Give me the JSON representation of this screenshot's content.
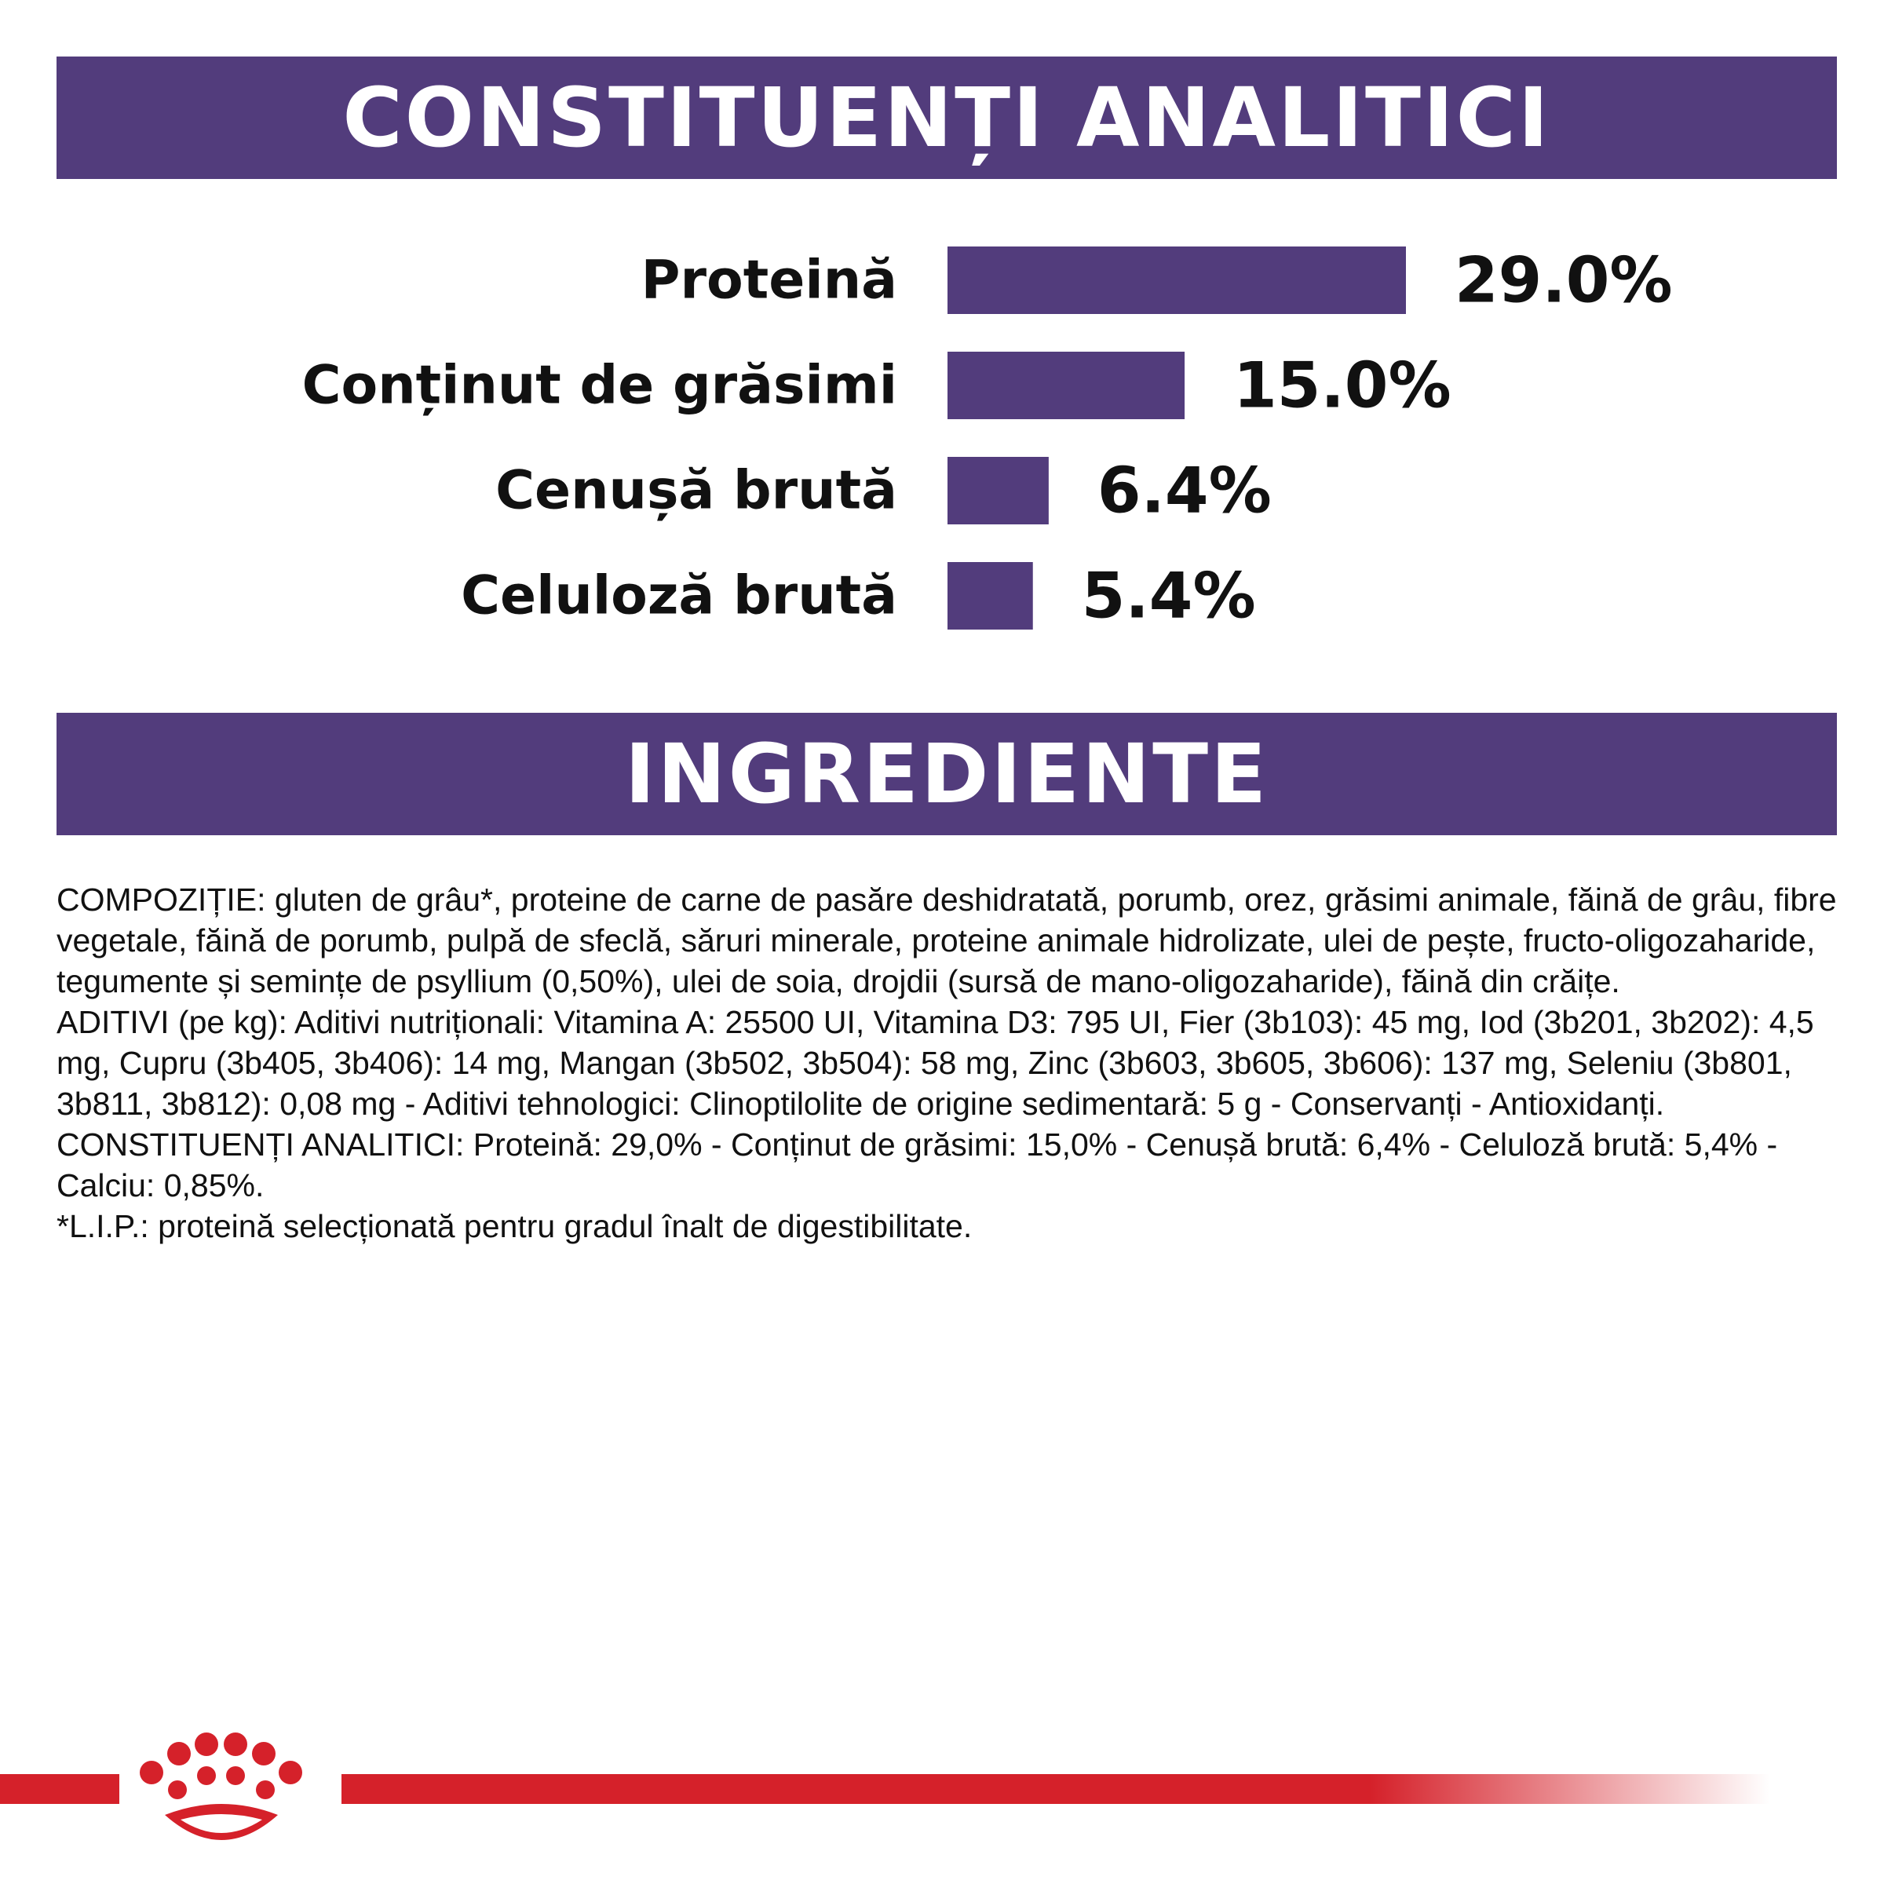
{
  "theme": {
    "purple": "#523c7c",
    "red": "#d5212a",
    "text": "#111111",
    "white": "#ffffff"
  },
  "sections": {
    "analytic_title": "CONSTITUENȚI ANALITICI",
    "ingredients_title": "INGREDIENTE"
  },
  "chart_data": {
    "type": "bar",
    "orientation": "horizontal",
    "title": "CONSTITUENȚI ANALITICI",
    "categories": [
      "Proteină",
      "Conținut de grăsimi",
      "Cenușă brută",
      "Celuloză brută"
    ],
    "values": [
      29.0,
      15.0,
      6.4,
      5.4
    ],
    "value_labels": [
      "29.0%",
      "15.0%",
      "6.4%",
      "5.4%"
    ],
    "unit": "%",
    "xlim": [
      0,
      29.0
    ],
    "grid": false,
    "legend": "none"
  },
  "ingredients": {
    "composition": "COMPOZIȚIE: gluten de grâu*, proteine de carne de pasăre deshidratată, porumb, orez, grăsimi animale, făină de grâu, fibre vegetale, făină de porumb, pulpă de sfeclă, săruri minerale, proteine animale hidrolizate, ulei de pește, fructo-oligozaharide, tegumente și semințe de psyllium (0,50%), ulei de soia, drojdii (sursă de mano-oligozaharide), făină din crăițe.",
    "additives": "ADITIVI (pe kg): Aditivi nutriționali: Vitamina A: 25500 UI, Vitamina D3: 795 UI, Fier (3b103): 45 mg, Iod (3b201, 3b202): 4,5 mg, Cupru (3b405, 3b406): 14 mg, Mangan (3b502, 3b504): 58 mg, Zinc (3b603, 3b605, 3b606): 137 mg, Seleniu (3b801, 3b811, 3b812): 0,08 mg - Aditivi tehnologici: Clinoptilolite de origine sedimentară: 5 g - Conservanți - Antioxidanți.",
    "analytic": "CONSTITUENȚI ANALITICI: Proteină: 29,0% - Conținut de grăsimi: 15,0% - Cenușă brută: 6,4% - Celuloză brută: 5,4% - Calciu: 0,85%.",
    "note": "*L.I.P.: proteină selecționată pentru gradul înalt de digestibilitate."
  },
  "footer": {
    "logo_icon": "crown-icon"
  }
}
